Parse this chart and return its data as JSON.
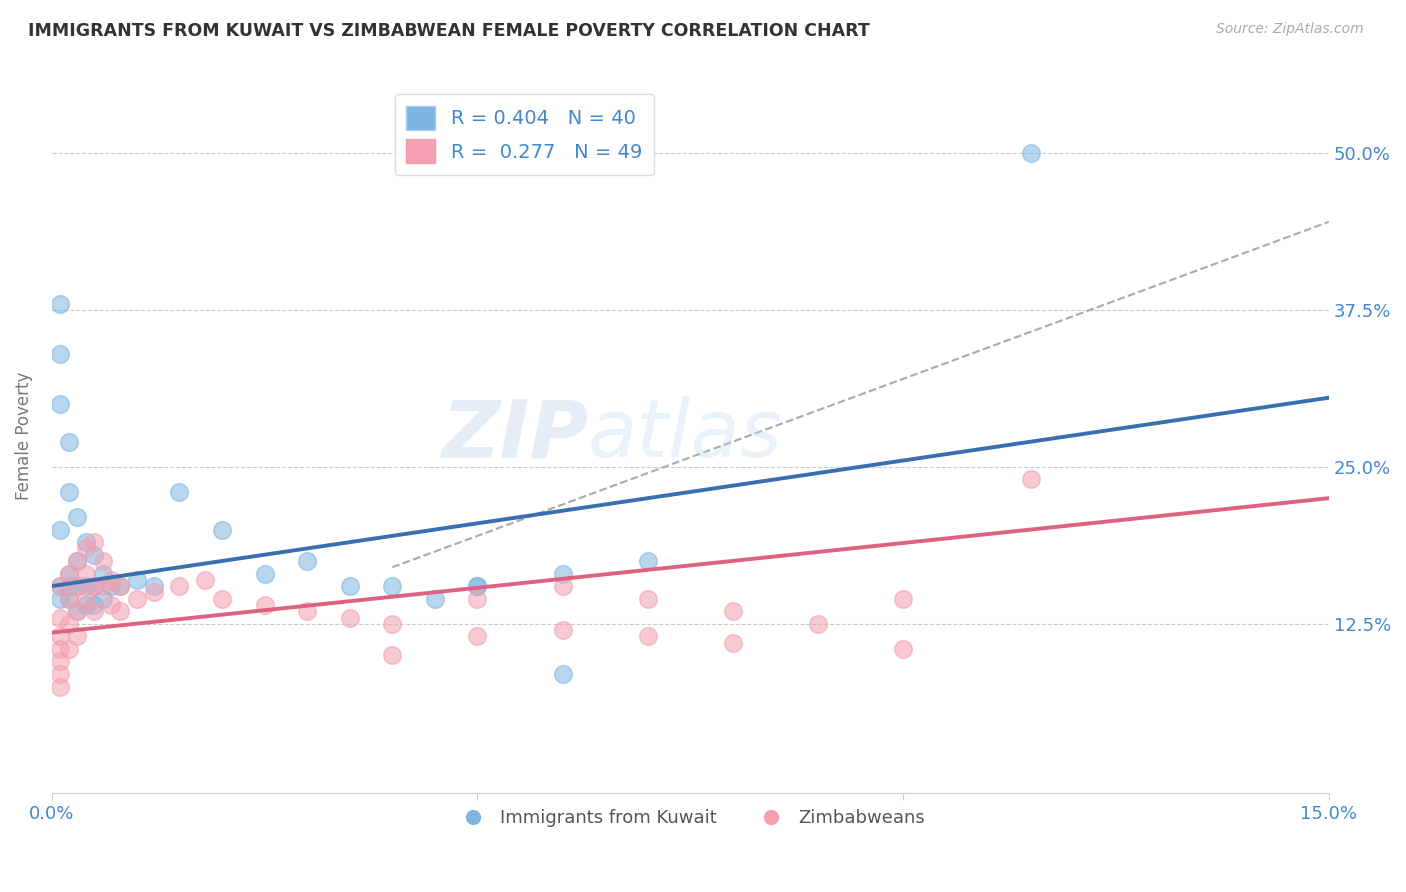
{
  "title": "IMMIGRANTS FROM KUWAIT VS ZIMBABWEAN FEMALE POVERTY CORRELATION CHART",
  "source_text": "Source: ZipAtlas.com",
  "ylabel": "Female Poverty",
  "watermark": "ZIPatlas",
  "xlim": [
    0.0,
    0.15
  ],
  "ylim": [
    -0.01,
    0.56
  ],
  "ytick_labels_right": [
    "12.5%",
    "25.0%",
    "37.5%",
    "50.0%"
  ],
  "ytick_values_right": [
    0.125,
    0.25,
    0.375,
    0.5
  ],
  "blue_color": "#7eb5e0",
  "pink_color": "#f4a0b0",
  "blue_line_color": "#3a6faf",
  "pink_line_color": "#e06080",
  "blue_R": 0.404,
  "blue_N": 40,
  "pink_R": 0.277,
  "pink_N": 49,
  "legend_label_blue": "Immigrants from Kuwait",
  "legend_label_pink": "Zimbabweans",
  "blue_scatter_x": [
    0.001,
    0.001,
    0.001,
    0.001,
    0.001,
    0.002,
    0.002,
    0.002,
    0.002,
    0.003,
    0.003,
    0.003,
    0.004,
    0.004,
    0.005,
    0.005,
    0.006,
    0.006,
    0.007,
    0.008,
    0.01,
    0.012,
    0.015,
    0.02,
    0.025,
    0.03,
    0.035,
    0.04,
    0.045,
    0.05,
    0.001,
    0.002,
    0.003,
    0.004,
    0.005,
    0.05,
    0.06,
    0.07,
    0.115,
    0.06
  ],
  "blue_scatter_y": [
    0.38,
    0.34,
    0.3,
    0.2,
    0.155,
    0.27,
    0.23,
    0.165,
    0.155,
    0.21,
    0.175,
    0.155,
    0.19,
    0.155,
    0.18,
    0.155,
    0.165,
    0.145,
    0.155,
    0.155,
    0.16,
    0.155,
    0.23,
    0.2,
    0.165,
    0.175,
    0.155,
    0.155,
    0.145,
    0.155,
    0.145,
    0.145,
    0.135,
    0.14,
    0.14,
    0.155,
    0.165,
    0.175,
    0.5,
    0.085
  ],
  "pink_scatter_x": [
    0.001,
    0.001,
    0.001,
    0.001,
    0.001,
    0.001,
    0.001,
    0.002,
    0.002,
    0.002,
    0.002,
    0.003,
    0.003,
    0.003,
    0.003,
    0.004,
    0.004,
    0.004,
    0.005,
    0.005,
    0.005,
    0.006,
    0.006,
    0.007,
    0.007,
    0.008,
    0.008,
    0.01,
    0.012,
    0.015,
    0.018,
    0.02,
    0.025,
    0.03,
    0.035,
    0.04,
    0.05,
    0.06,
    0.07,
    0.08,
    0.09,
    0.1,
    0.05,
    0.06,
    0.07,
    0.08,
    0.1,
    0.115,
    0.04
  ],
  "pink_scatter_y": [
    0.155,
    0.13,
    0.115,
    0.105,
    0.095,
    0.085,
    0.075,
    0.165,
    0.145,
    0.125,
    0.105,
    0.175,
    0.155,
    0.135,
    0.115,
    0.185,
    0.165,
    0.145,
    0.19,
    0.155,
    0.135,
    0.175,
    0.155,
    0.16,
    0.14,
    0.155,
    0.135,
    0.145,
    0.15,
    0.155,
    0.16,
    0.145,
    0.14,
    0.135,
    0.13,
    0.125,
    0.145,
    0.155,
    0.145,
    0.135,
    0.125,
    0.145,
    0.115,
    0.12,
    0.115,
    0.11,
    0.105,
    0.24,
    0.1
  ],
  "background_color": "#ffffff",
  "grid_color": "#cccccc",
  "title_color": "#333333",
  "axis_label_color": "#777777",
  "tick_color": "#4488cc"
}
